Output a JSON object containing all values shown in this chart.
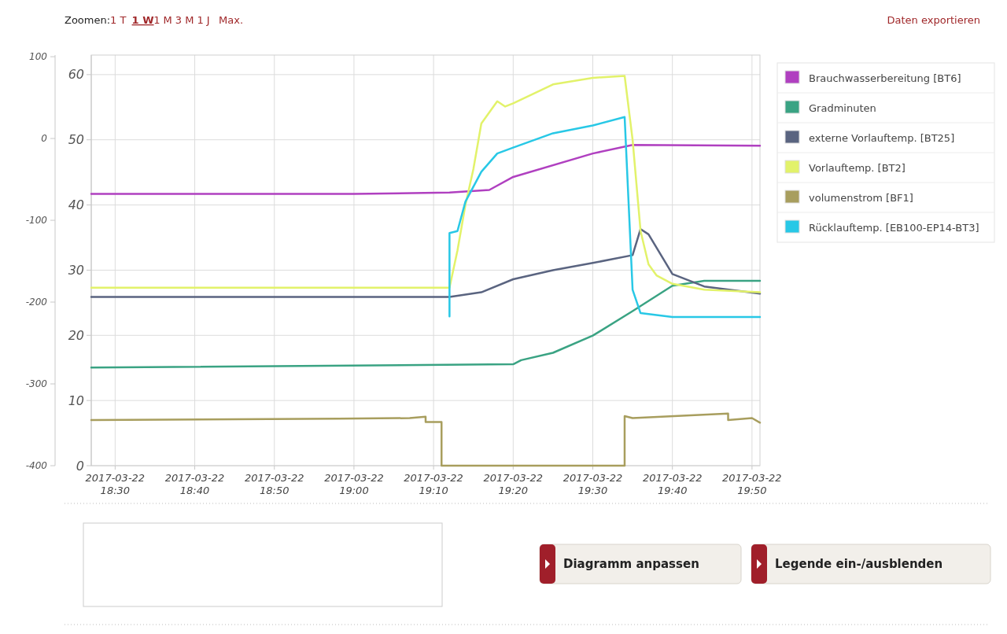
{
  "chart_data": {
    "type": "line",
    "xlim": [
      "2017-03-22T18:27",
      "2017-03-22T19:51"
    ],
    "xticks": [
      {
        "value": "2017-03-22T18:30",
        "label": "2017-03-22 18:30"
      },
      {
        "value": "2017-03-22T18:40",
        "label": "2017-03-22 18:40"
      },
      {
        "value": "2017-03-22T18:50",
        "label": "2017-03-22 18:50"
      },
      {
        "value": "2017-03-22T19:00",
        "label": "2017-03-22 19:00"
      },
      {
        "value": "2017-03-22T19:10",
        "label": "2017-03-22 19:10"
      },
      {
        "value": "2017-03-22T19:20",
        "label": "2017-03-22 19:20"
      },
      {
        "value": "2017-03-22T19:30",
        "label": "2017-03-22 19:30"
      },
      {
        "value": "2017-03-22T19:40",
        "label": "2017-03-22 19:40"
      },
      {
        "value": "2017-03-22T19:50",
        "label": "2017-03-22 19:50"
      }
    ],
    "ylim": [
      0,
      63
    ],
    "yticks": [
      0,
      10,
      20,
      30,
      40,
      50,
      60
    ],
    "y2lim": [
      -400,
      102
    ],
    "y2ticks": [
      -400,
      -300,
      -200,
      -100,
      0,
      100
    ],
    "grid": true,
    "legend": "right",
    "marker": "none",
    "line_style": "solid",
    "series": [
      {
        "name": "Brauchwasserbereitung [BT6]",
        "color": "#b040c0",
        "x": [
          "2017-03-22T18:27",
          "2017-03-22T19:00",
          "2017-03-22T19:12",
          "2017-03-22T19:17",
          "2017-03-22T19:20",
          "2017-03-22T19:30",
          "2017-03-22T19:35",
          "2017-03-22T19:51"
        ],
        "values": [
          41.7,
          41.7,
          41.9,
          42.3,
          44.3,
          47.9,
          49.2,
          49.1
        ]
      },
      {
        "name": "Gradminuten",
        "color": "#3aa383",
        "axis": "y2",
        "x": [
          "2017-03-22T18:27",
          "2017-03-22T19:20",
          "2017-03-22T19:21",
          "2017-03-22T19:25",
          "2017-03-22T19:30",
          "2017-03-22T19:35",
          "2017-03-22T19:40",
          "2017-03-22T19:44",
          "2017-03-22T19:51"
        ],
        "values": [
          -280,
          -276,
          -271,
          -262,
          -241,
          -211,
          -180,
          -174,
          -174
        ]
      },
      {
        "name": "externe Vorlauftemp. [BT25]",
        "color": "#5a6480",
        "x": [
          "2017-03-22T18:27",
          "2017-03-22T19:12",
          "2017-03-22T19:16",
          "2017-03-22T19:20",
          "2017-03-22T19:25",
          "2017-03-22T19:30",
          "2017-03-22T19:35",
          "2017-03-22T19:36",
          "2017-03-22T19:37",
          "2017-03-22T19:40",
          "2017-03-22T19:44",
          "2017-03-22T19:51"
        ],
        "values": [
          25.9,
          25.9,
          26.6,
          28.6,
          30.0,
          31.1,
          32.3,
          36.3,
          35.5,
          29.4,
          27.5,
          26.4
        ]
      },
      {
        "name": "Vorlauftemp. [BT2]",
        "color": "#e2f26a",
        "x": [
          "2017-03-22T18:27",
          "2017-03-22T19:12",
          "2017-03-22T19:13",
          "2017-03-22T19:14",
          "2017-03-22T19:15",
          "2017-03-22T19:16",
          "2017-03-22T19:18",
          "2017-03-22T19:19",
          "2017-03-22T19:20",
          "2017-03-22T19:25",
          "2017-03-22T19:30",
          "2017-03-22T19:34",
          "2017-03-22T19:35",
          "2017-03-22T19:36",
          "2017-03-22T19:37",
          "2017-03-22T19:38",
          "2017-03-22T19:40",
          "2017-03-22T19:44",
          "2017-03-22T19:51"
        ],
        "values": [
          27.3,
          27.3,
          33,
          40,
          45.5,
          52.5,
          55.9,
          55.1,
          55.6,
          58.5,
          59.5,
          59.8,
          50,
          36,
          30.9,
          29.2,
          27.9,
          27.0,
          26.6
        ]
      },
      {
        "name": "volumenstrom [BF1]",
        "color": "#a89e5e",
        "x": [
          "2017-03-22T18:27",
          "2017-03-22T18:58",
          "2017-03-22T19:07",
          "2017-03-22T19:09",
          "2017-03-22T19:09",
          "2017-03-22T19:11",
          "2017-03-22T19:11",
          "2017-03-22T19:34",
          "2017-03-22T19:34",
          "2017-03-22T19:35",
          "2017-03-22T19:47",
          "2017-03-22T19:47",
          "2017-03-22T19:50",
          "2017-03-22T19:51"
        ],
        "values": [
          7.0,
          7.2,
          7.3,
          7.5,
          6.7,
          6.7,
          0,
          0,
          7.6,
          7.3,
          8.0,
          7.0,
          7.3,
          6.6
        ]
      },
      {
        "name": "Rücklauftemp. [EB100-EP14-BT3]",
        "color": "#28c8e6",
        "x": [
          "2017-03-22T19:12",
          "2017-03-22T19:12",
          "2017-03-22T19:13",
          "2017-03-22T19:14",
          "2017-03-22T19:16",
          "2017-03-22T19:18",
          "2017-03-22T19:20",
          "2017-03-22T19:25",
          "2017-03-22T19:30",
          "2017-03-22T19:34",
          "2017-03-22T19:35",
          "2017-03-22T19:36",
          "2017-03-22T19:40",
          "2017-03-22T19:51"
        ],
        "values": [
          22.9,
          35.7,
          36.0,
          40.5,
          45.1,
          47.9,
          48.8,
          51.0,
          52.2,
          53.5,
          27,
          23.4,
          22.8,
          22.8
        ]
      }
    ],
    "annotations": [
      "Zoomen:",
      "1 T",
      "1 W",
      "1 M",
      "3 M",
      "1 J",
      "Max.",
      "Daten exportieren",
      "Diagramm anpassen",
      "Legende ein-/ausblenden"
    ]
  }
}
